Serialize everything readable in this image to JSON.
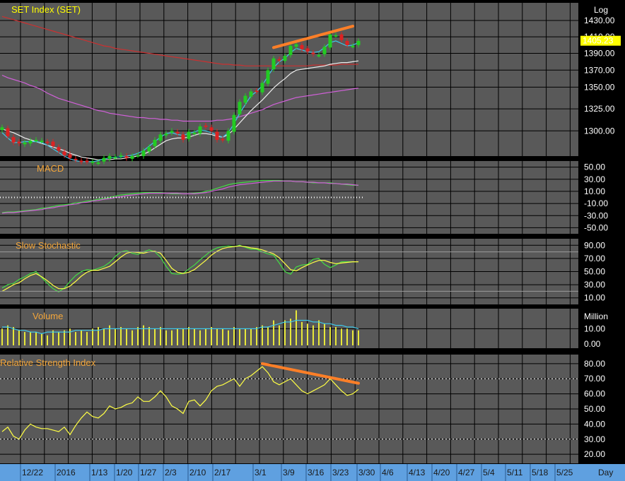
{
  "window": {
    "title": "SET Index (SET)"
  },
  "price_label": "1405.23",
  "scale_label": "Log",
  "panels": {
    "price": {
      "title": "SET Index (SET)",
      "ticks": [
        "1430.00",
        "1410.00",
        "1390.00",
        "1370.00",
        "1350.00",
        "1325.00",
        "1300.00"
      ]
    },
    "macd": {
      "title": "MACD",
      "ticks": [
        "50.00",
        "30.00",
        "10.00",
        "-10.00",
        "-30.00",
        "-50.00"
      ]
    },
    "stoch": {
      "title": "Slow Stochastic",
      "ticks": [
        "90.00",
        "70.00",
        "50.00",
        "30.00",
        "10.00"
      ]
    },
    "volume": {
      "title": "Volume",
      "unit": "Million",
      "ticks": [
        "10.00",
        "0.00"
      ]
    },
    "rsi": {
      "title": "Relative Strength Index",
      "ticks": [
        "80.00",
        "70.00",
        "60.00",
        "50.00",
        "40.00",
        "30.00",
        "20.00"
      ]
    }
  },
  "x_axis": {
    "labels": [
      "12/22",
      "2016",
      "1/13",
      "1/20",
      "1/27",
      "2/3",
      "2/10",
      "2/17",
      "3/1",
      "3/9",
      "3/16",
      "3/23",
      "3/30",
      "4/6",
      "4/13",
      "4/20",
      "4/27",
      "5/4",
      "5/11",
      "5/18",
      "5/25"
    ],
    "unit_label": "Day"
  },
  "colors": {
    "background": "#595959",
    "grid": "#000000",
    "title": "#f4a63a",
    "up_candle": "#22cc22",
    "down_candle": "#dd2222",
    "ma_cyan": "#3fc8e8",
    "ma_white": "#eeeeee",
    "ma_violet": "#d060d8",
    "ma_red": "#cc3030",
    "volume_bar": "#e8e83a",
    "trendline": "#ff7f27",
    "price_badge": "#ffff00"
  },
  "chart_data": [
    {
      "type": "candlestick",
      "title": "SET Index (SET)",
      "scale": "log",
      "y_ticks": [
        1300,
        1325,
        1350,
        1370,
        1390,
        1410,
        1430
      ],
      "last_close": 1405.23,
      "close": [
        1304,
        1294,
        1287,
        1286,
        1287,
        1289,
        1290,
        1289,
        1287,
        1283,
        1278,
        1273,
        1270,
        1268,
        1266,
        1266,
        1266,
        1265,
        1270,
        1272,
        1271,
        1273,
        1270,
        1272,
        1273,
        1278,
        1282,
        1290,
        1296,
        1297,
        1300,
        1297,
        1290,
        1299,
        1298,
        1305,
        1305,
        1300,
        1290,
        1290,
        1300,
        1318,
        1333,
        1340,
        1345,
        1345,
        1355,
        1370,
        1384,
        1382,
        1387,
        1399,
        1401,
        1395,
        1392,
        1389,
        1388,
        1398,
        1413,
        1412,
        1406,
        1400,
        1399,
        1405
      ],
      "ma_cyan": [
        1298,
        1292,
        1287,
        1287,
        1288,
        1288,
        1288,
        1287,
        1284,
        1280,
        1276,
        1272,
        1269,
        1267,
        1266,
        1266,
        1266,
        1267,
        1269,
        1270,
        1271,
        1271,
        1272,
        1273,
        1275,
        1278,
        1283,
        1288,
        1293,
        1297,
        1298,
        1296,
        1295,
        1297,
        1299,
        1301,
        1300,
        1298,
        1295,
        1293,
        1298,
        1308,
        1320,
        1330,
        1340,
        1345,
        1352,
        1363,
        1373,
        1380,
        1384,
        1391,
        1396,
        1394,
        1392,
        1391,
        1392,
        1397,
        1403,
        1405,
        1402,
        1399,
        1400,
        1403
      ],
      "ma_white": [
        1302,
        1300,
        1298,
        1295,
        1292,
        1290,
        1288,
        1286,
        1284,
        1282,
        1280,
        1278,
        1275,
        1273,
        1271,
        1270,
        1269,
        1268,
        1268,
        1268,
        1269,
        1269,
        1270,
        1271,
        1272,
        1274,
        1277,
        1281,
        1285,
        1289,
        1291,
        1292,
        1292,
        1293,
        1295,
        1297,
        1297,
        1296,
        1294,
        1293,
        1296,
        1302,
        1309,
        1316,
        1323,
        1329,
        1335,
        1342,
        1349,
        1355,
        1360,
        1366,
        1370,
        1371,
        1372,
        1373,
        1374,
        1375,
        1377,
        1378,
        1379,
        1379,
        1380,
        1381
      ],
      "ma_violet": [
        1364,
        1361,
        1359,
        1357,
        1355,
        1352,
        1350,
        1347,
        1343,
        1340,
        1337,
        1335,
        1333,
        1331,
        1329,
        1327,
        1325,
        1323,
        1322,
        1320,
        1319,
        1318,
        1317,
        1316,
        1315,
        1315,
        1314,
        1314,
        1313,
        1313,
        1312,
        1312,
        1311,
        1311,
        1311,
        1311,
        1311,
        1311,
        1312,
        1312,
        1313,
        1314,
        1316,
        1318,
        1320,
        1322,
        1324,
        1327,
        1330,
        1332,
        1334,
        1336,
        1338,
        1339,
        1340,
        1341,
        1342,
        1343,
        1344,
        1345,
        1346,
        1347,
        1348,
        1349
      ],
      "ma_red": [
        1435,
        1433,
        1431,
        1429,
        1427,
        1425,
        1423,
        1421,
        1419,
        1417,
        1415,
        1413,
        1411,
        1409,
        1407,
        1405,
        1403,
        1401,
        1399,
        1398,
        1396,
        1395,
        1394,
        1393,
        1392,
        1391,
        1390,
        1389,
        1388,
        1387,
        1386,
        1385,
        1384,
        1383,
        1382,
        1381,
        1380,
        1379,
        1378,
        1377,
        1377,
        1376,
        1376,
        1375,
        1375,
        1375,
        1375,
        1375,
        1375,
        1375,
        1375,
        1375,
        1375,
        1375,
        1375,
        1376,
        1376,
        1376,
        1376,
        1376,
        1377,
        1377,
        1377,
        1377
      ],
      "trendline": {
        "from": [
          48,
          1397
        ],
        "to": [
          62,
          1423
        ]
      }
    },
    {
      "type": "line",
      "title": "MACD",
      "y_ticks": [
        -50,
        -30,
        -10,
        10,
        30,
        50
      ],
      "series": [
        {
          "values": [
            -25,
            -24,
            -24,
            -23,
            -22,
            -21,
            -20,
            -18,
            -17,
            -15,
            -13,
            -12,
            -11,
            -9,
            -8,
            -6,
            -5,
            -3,
            -2,
            0,
            2,
            4,
            5,
            6,
            7,
            8,
            8,
            8,
            8,
            7,
            6,
            6,
            6,
            6,
            7,
            8,
            10,
            12,
            15,
            18,
            21,
            23,
            24,
            25,
            26,
            27,
            28,
            28,
            28,
            28,
            27,
            27,
            26,
            26,
            25,
            24,
            24,
            24,
            24,
            23,
            22,
            21,
            20,
            20
          ]
        },
        {
          "values": [
            -26,
            -25,
            -25,
            -24,
            -23,
            -22,
            -21,
            -20,
            -18,
            -17,
            -15,
            -14,
            -12,
            -11,
            -9,
            -8,
            -6,
            -5,
            -3,
            -2,
            0,
            1,
            3,
            4,
            5,
            6,
            7,
            7,
            7,
            7,
            7,
            7,
            6,
            6,
            6,
            7,
            8,
            10,
            12,
            14,
            17,
            19,
            21,
            22,
            23,
            24,
            25,
            26,
            27,
            27,
            27,
            27,
            26,
            26,
            25,
            25,
            24,
            24,
            23,
            23,
            22,
            22,
            21,
            20
          ]
        }
      ]
    },
    {
      "type": "line",
      "title": "Slow Stochastic",
      "y_ticks": [
        10,
        30,
        50,
        70,
        90
      ],
      "series": [
        {
          "values": [
            25,
            30,
            32,
            38,
            42,
            47,
            50,
            41,
            32,
            24,
            19,
            25,
            35,
            44,
            50,
            53,
            52,
            55,
            58,
            64,
            73,
            80,
            82,
            78,
            76,
            80,
            83,
            80,
            72,
            58,
            47,
            46,
            47,
            54,
            60,
            68,
            75,
            82,
            86,
            88,
            89,
            88,
            90,
            87,
            84,
            84,
            80,
            77,
            75,
            63,
            50,
            46,
            57,
            60,
            61,
            69,
            70,
            61,
            56,
            60,
            65,
            65,
            65,
            65
          ]
        },
        {
          "values": [
            20,
            25,
            30,
            33,
            39,
            44,
            47,
            42,
            36,
            29,
            24,
            24,
            28,
            35,
            43,
            49,
            52,
            52,
            55,
            58,
            65,
            72,
            78,
            80,
            79,
            78,
            80,
            81,
            78,
            67,
            55,
            49,
            47,
            49,
            53,
            60,
            67,
            75,
            81,
            85,
            87,
            88,
            89,
            88,
            86,
            85,
            83,
            80,
            77,
            71,
            62,
            53,
            51,
            56,
            60,
            64,
            67,
            67,
            64,
            62,
            63,
            64,
            65,
            65
          ]
        }
      ]
    },
    {
      "type": "bar",
      "title": "Volume",
      "unit": "Million",
      "y_ticks": [
        0,
        10
      ],
      "values": [
        10,
        12,
        11,
        9,
        8,
        8,
        8,
        7,
        6,
        9,
        8,
        9,
        10,
        8,
        9,
        8,
        10,
        11,
        10,
        12,
        10,
        11,
        10,
        9,
        11,
        12,
        11,
        10,
        11,
        9,
        9,
        10,
        10,
        11,
        10,
        9,
        10,
        11,
        10,
        10,
        9,
        11,
        10,
        10,
        10,
        11,
        12,
        11,
        15,
        12,
        15,
        16,
        21,
        14,
        13,
        12,
        15,
        13,
        11,
        11,
        10,
        10,
        9,
        9
      ],
      "ma": [
        11,
        11,
        10,
        9,
        9,
        8,
        8,
        7,
        8,
        8,
        8,
        8,
        8,
        9,
        9,
        9,
        9,
        9,
        10,
        10,
        10,
        10,
        10,
        10,
        10,
        10,
        10,
        10,
        10,
        10,
        10,
        10,
        10,
        10,
        10,
        10,
        10,
        10,
        10,
        10,
        10,
        10,
        10,
        10,
        10,
        10,
        11,
        11,
        12,
        13,
        14,
        14,
        15,
        15,
        15,
        14,
        14,
        13,
        13,
        12,
        12,
        11,
        11,
        10
      ]
    },
    {
      "type": "line",
      "title": "Relative Strength Index",
      "y_ticks": [
        20,
        30,
        40,
        50,
        60,
        70,
        80
      ],
      "series": [
        {
          "values": [
            35,
            38,
            32,
            30,
            36,
            40,
            38,
            37,
            37,
            36,
            35,
            38,
            33,
            39,
            44,
            48,
            45,
            44,
            47,
            52,
            50,
            51,
            53,
            54,
            58,
            55,
            55,
            58,
            62,
            58,
            52,
            50,
            47,
            55,
            56,
            52,
            56,
            62,
            65,
            66,
            68,
            70,
            65,
            70,
            72,
            75,
            78,
            74,
            68,
            66,
            68,
            70,
            66,
            62,
            60,
            62,
            64,
            66,
            70,
            66,
            62,
            59,
            60,
            63
          ]
        }
      ],
      "trendline": {
        "from": [
          46,
          80
        ],
        "to": [
          63,
          67
        ]
      }
    }
  ]
}
